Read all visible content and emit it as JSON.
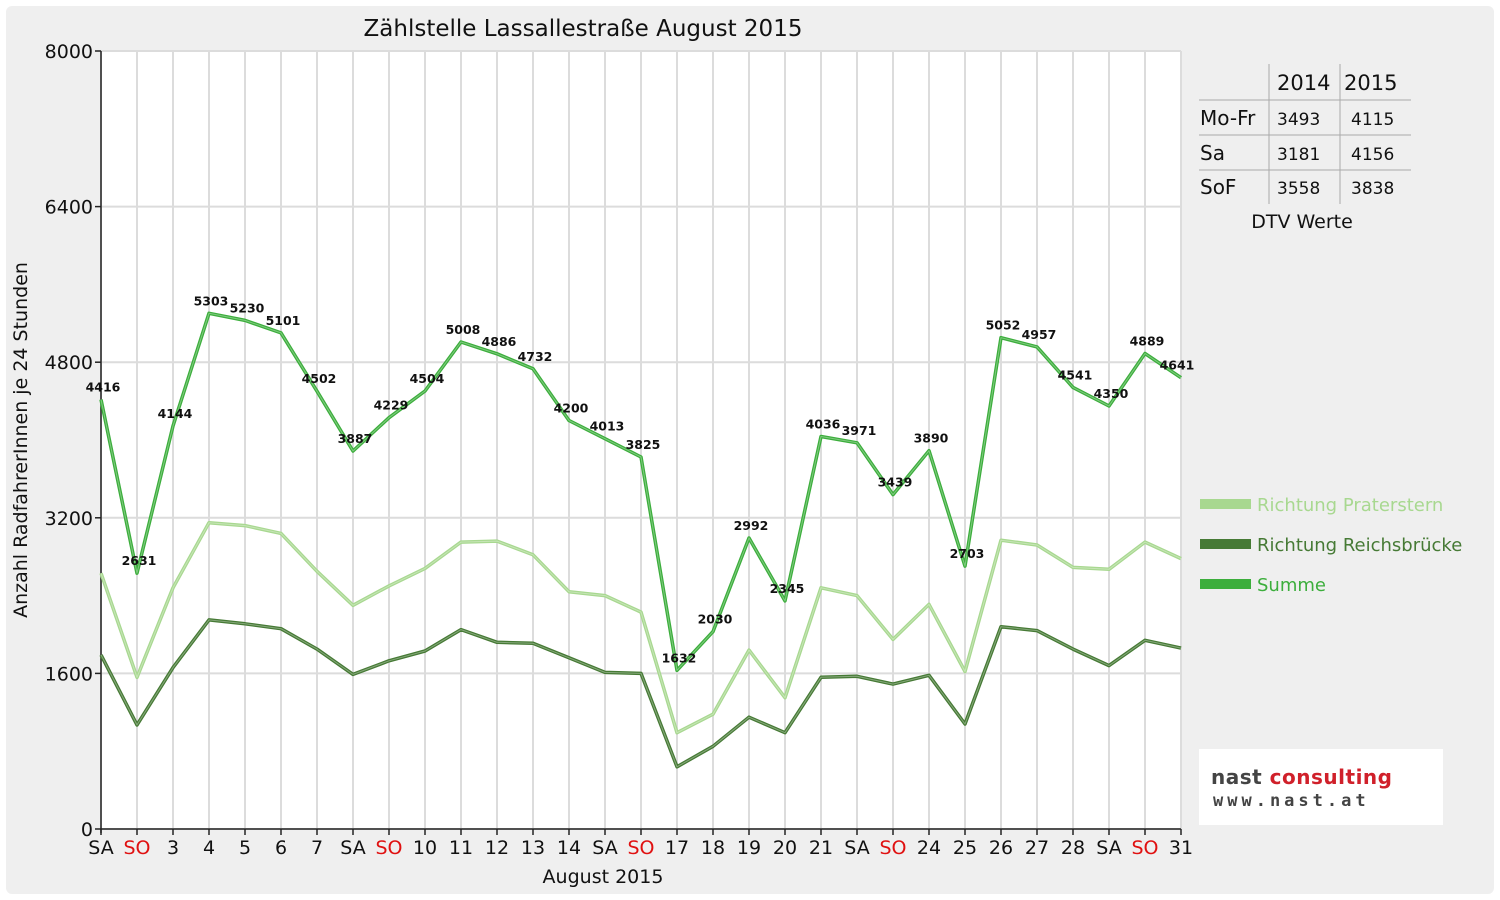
{
  "chart_data": {
    "type": "line",
    "title": "Zählstelle Lassallestraße August 2015",
    "xlabel": "August 2015",
    "ylabel": "Anzahl RadfahrerInnen je 24 Stunden",
    "ylim": [
      0,
      8000
    ],
    "yticks": [
      0,
      1600,
      3200,
      4800,
      6400,
      8000
    ],
    "grid": true,
    "legend_position": "right",
    "categories": [
      "SA",
      "SO",
      "3",
      "4",
      "5",
      "6",
      "7",
      "SA",
      "SO",
      "10",
      "11",
      "12",
      "13",
      "14",
      "SA",
      "SO",
      "17",
      "18",
      "19",
      "20",
      "21",
      "SA",
      "SO",
      "24",
      "25",
      "26",
      "27",
      "28",
      "SA",
      "SO",
      "31"
    ],
    "red_categories": [
      "SO"
    ],
    "series": [
      {
        "name": "Richtung Praterstern",
        "color": "#a8d890",
        "values": [
          2630,
          1560,
          2480,
          3150,
          3120,
          3040,
          2650,
          2300,
          2500,
          2680,
          2950,
          2960,
          2820,
          2440,
          2400,
          2230,
          990,
          1180,
          1840,
          1350,
          2480,
          2400,
          1950,
          2310,
          1620,
          2970,
          2920,
          2690,
          2670,
          2950,
          2780
        ]
      },
      {
        "name": "Richtung Reichsbrücke",
        "color": "#467a35",
        "values": [
          1790,
          1070,
          1660,
          2150,
          2110,
          2060,
          1850,
          1590,
          1730,
          1830,
          2050,
          1920,
          1910,
          1760,
          1610,
          1600,
          640,
          850,
          1150,
          990,
          1560,
          1570,
          1490,
          1580,
          1080,
          2080,
          2040,
          1850,
          1680,
          1940,
          1860
        ]
      },
      {
        "name": "Summe",
        "color": "#3cae3c",
        "values": [
          4416,
          2631,
          4144,
          5303,
          5230,
          5101,
          4502,
          3887,
          4229,
          4504,
          5008,
          4886,
          4732,
          4200,
          4013,
          3825,
          1632,
          2030,
          2992,
          2345,
          4036,
          3971,
          3439,
          3890,
          2703,
          5052,
          4957,
          4541,
          4350,
          4889,
          4641
        ]
      }
    ],
    "data_labels": [
      "4416",
      "2631",
      "4144",
      "5303",
      "5230",
      "5101",
      "4502",
      "3887",
      "4229",
      "4504",
      "5008",
      "4886",
      "4732",
      "4200",
      "4013",
      "3825",
      "1632",
      "2030",
      "2992",
      "2345",
      "4036",
      "3971",
      "3439",
      "3890",
      "2703",
      "5052",
      "4957",
      "4541",
      "4350",
      "4889",
      "4641"
    ]
  },
  "dtv_table": {
    "col_headers": [
      "2014",
      "2015"
    ],
    "rows": [
      {
        "label": "Mo-Fr",
        "v2014": "3493",
        "v2015": "4115"
      },
      {
        "label": "Sa",
        "v2014": "3181",
        "v2015": "4156"
      },
      {
        "label": "SoF",
        "v2014": "3558",
        "v2015": "3838"
      }
    ],
    "caption": "DTV Werte"
  },
  "logo": {
    "name_part1": "nast ",
    "name_part2": "consulting",
    "url": "www.nast.at",
    "accent_color": "#d0202a"
  }
}
